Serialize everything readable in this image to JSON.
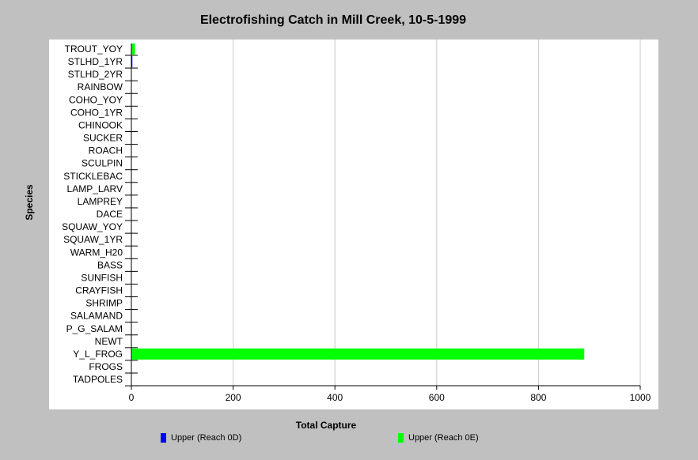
{
  "chart_data": {
    "type": "bar",
    "orientation": "horizontal",
    "title": "Electrofishing Catch in Mill Creek, 10-5-1999",
    "xlabel": "Total Capture",
    "ylabel": "Species",
    "xlim": [
      0,
      1000
    ],
    "xticks": [
      0,
      200,
      400,
      600,
      800,
      1000
    ],
    "grid": "vertical",
    "legend_position": "bottom",
    "categories": [
      "TROUT_YOY",
      "STLHD_1YR",
      "STLHD_2YR",
      "RAINBOW",
      "COHO_YOY",
      "COHO_1YR",
      "CHINOOK",
      "SUCKER",
      "ROACH",
      "SCULPIN",
      "STICKLEBAC",
      "LAMP_LARV",
      "LAMPREY",
      "DACE",
      "SQUAW_YOY",
      "SQUAW_1YR",
      "WARM_H20",
      "BASS",
      "SUNFISH",
      "CRAYFISH",
      "SHRIMP",
      "SALAMAND",
      "P_G_SALAM",
      "NEWT",
      "Y_L_FROG",
      "FROGS",
      "TADPOLES"
    ],
    "series": [
      {
        "name": "Upper (Reach 0D)",
        "color": "#0000ff",
        "values": [
          5,
          2,
          0,
          0,
          0,
          0,
          0,
          0,
          0,
          0,
          0,
          0,
          0,
          0,
          0,
          0,
          0,
          0,
          0,
          0,
          0,
          0,
          0,
          0,
          0,
          0,
          0
        ]
      },
      {
        "name": "Upper (Reach 0E)",
        "color": "#00ff00",
        "values": [
          7,
          0,
          0,
          0,
          0,
          0,
          0,
          0,
          0,
          0,
          0,
          0,
          0,
          0,
          0,
          0,
          0,
          0,
          0,
          0,
          0,
          0,
          0,
          0,
          890,
          0,
          0
        ]
      }
    ]
  }
}
